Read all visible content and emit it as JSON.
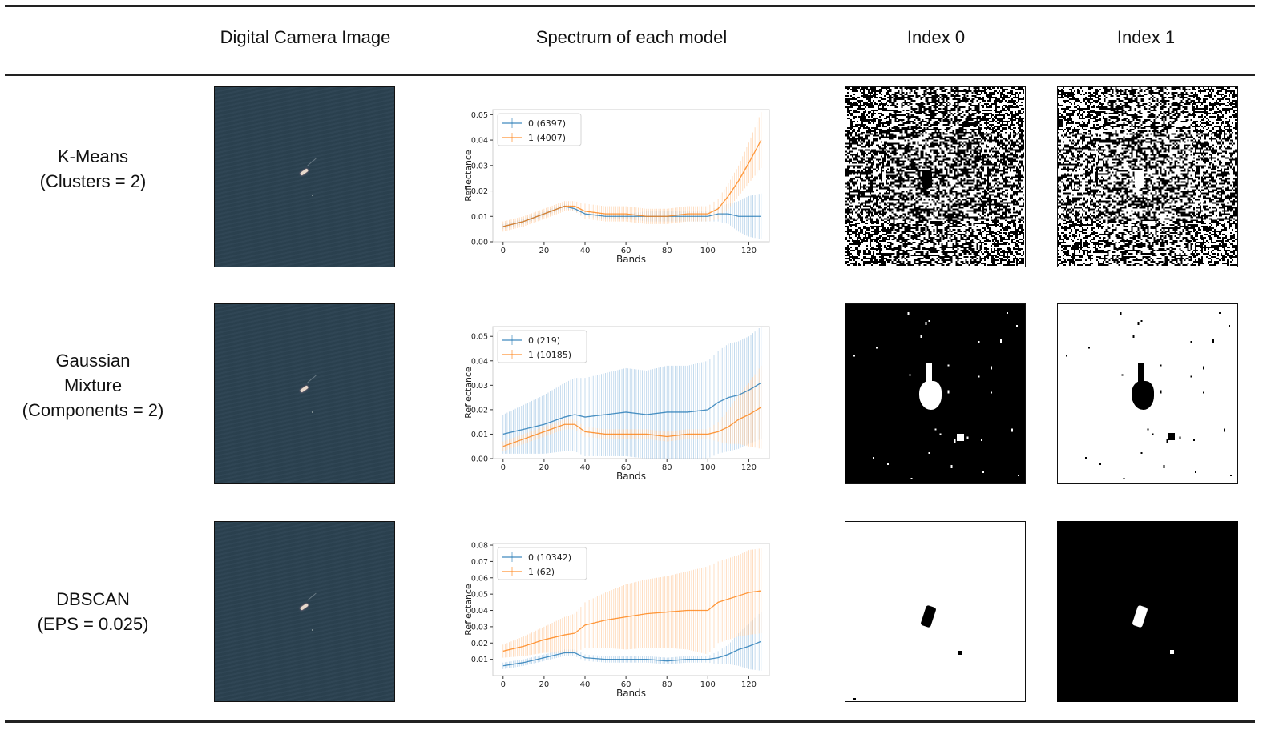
{
  "headers": {
    "image": "Digital Camera Image",
    "spectrum": "Spectrum of each model",
    "index0": "Index 0",
    "index1": "Index 1"
  },
  "rows": [
    {
      "model_line1": "K-Means",
      "model_line2": "(Clusters = 2)",
      "model_line3": ""
    },
    {
      "model_line1": "Gaussian",
      "model_line2": "Mixture",
      "model_line3": "(Components = 2)"
    },
    {
      "model_line1": "DBSCAN",
      "model_line2": "(EPS = 0.025)",
      "model_line3": ""
    }
  ],
  "colors": {
    "series0": "#1f77b4",
    "series1": "#ff7f0e",
    "water": "#2b4251"
  },
  "chart_data": [
    {
      "type": "line",
      "xlabel": "Bands",
      "ylabel": "Reflectance",
      "xlim": [
        -5,
        130
      ],
      "ylim": [
        0,
        0.052
      ],
      "xticks": [
        0,
        20,
        40,
        60,
        80,
        100,
        120
      ],
      "yticks": [
        0.0,
        0.01,
        0.02,
        0.03,
        0.04,
        0.05
      ],
      "ytick_labels": [
        "0.00",
        "0.01",
        "0.02",
        "0.03",
        "0.04",
        "0.05"
      ],
      "legend": "top-left",
      "x": [
        0,
        10,
        20,
        30,
        35,
        40,
        50,
        60,
        70,
        80,
        90,
        100,
        105,
        110,
        115,
        120,
        126
      ],
      "series": [
        {
          "name": "0 (6397)",
          "values": [
            0.006,
            0.008,
            0.011,
            0.014,
            0.013,
            0.011,
            0.01,
            0.01,
            0.01,
            0.01,
            0.01,
            0.01,
            0.011,
            0.011,
            0.01,
            0.01,
            0.01
          ],
          "errors": [
            0.001,
            0.001,
            0.001,
            0.001,
            0.001,
            0.001,
            0.001,
            0.001,
            0.002,
            0.002,
            0.002,
            0.002,
            0.003,
            0.004,
            0.006,
            0.008,
            0.009
          ]
        },
        {
          "name": "1 (4007)",
          "values": [
            0.006,
            0.008,
            0.011,
            0.014,
            0.014,
            0.012,
            0.011,
            0.011,
            0.01,
            0.01,
            0.011,
            0.011,
            0.013,
            0.018,
            0.024,
            0.031,
            0.04
          ],
          "errors": [
            0.002,
            0.002,
            0.002,
            0.002,
            0.002,
            0.003,
            0.003,
            0.003,
            0.003,
            0.003,
            0.003,
            0.003,
            0.004,
            0.005,
            0.006,
            0.008,
            0.011
          ]
        }
      ]
    },
    {
      "type": "line",
      "xlabel": "Bands",
      "ylabel": "Reflectance",
      "xlim": [
        -5,
        130
      ],
      "ylim": [
        0,
        0.054
      ],
      "xticks": [
        0,
        20,
        40,
        60,
        80,
        100,
        120
      ],
      "yticks": [
        0.0,
        0.01,
        0.02,
        0.03,
        0.04,
        0.05
      ],
      "ytick_labels": [
        "0.00",
        "0.01",
        "0.02",
        "0.03",
        "0.04",
        "0.05"
      ],
      "legend": "top-left",
      "x": [
        0,
        10,
        20,
        30,
        35,
        40,
        50,
        60,
        70,
        80,
        90,
        100,
        105,
        110,
        115,
        120,
        126
      ],
      "series": [
        {
          "name": "0 (219)",
          "values": [
            0.01,
            0.012,
            0.014,
            0.017,
            0.018,
            0.017,
            0.018,
            0.019,
            0.018,
            0.019,
            0.019,
            0.02,
            0.023,
            0.025,
            0.026,
            0.028,
            0.031
          ],
          "errors": [
            0.008,
            0.01,
            0.012,
            0.014,
            0.015,
            0.016,
            0.017,
            0.018,
            0.018,
            0.019,
            0.019,
            0.02,
            0.021,
            0.022,
            0.022,
            0.022,
            0.023
          ]
        },
        {
          "name": "1 (10185)",
          "values": [
            0.005,
            0.008,
            0.011,
            0.014,
            0.014,
            0.011,
            0.01,
            0.01,
            0.01,
            0.009,
            0.01,
            0.01,
            0.011,
            0.013,
            0.016,
            0.018,
            0.021
          ],
          "errors": [
            0.002,
            0.002,
            0.002,
            0.002,
            0.002,
            0.002,
            0.002,
            0.002,
            0.002,
            0.002,
            0.002,
            0.002,
            0.004,
            0.007,
            0.01,
            0.013,
            0.017
          ]
        }
      ]
    },
    {
      "type": "line",
      "xlabel": "Bands",
      "ylabel": "Reflectance",
      "xlim": [
        -5,
        130
      ],
      "ylim": [
        0,
        0.081
      ],
      "xticks": [
        0,
        20,
        40,
        60,
        80,
        100,
        120
      ],
      "yticks": [
        0.01,
        0.02,
        0.03,
        0.04,
        0.05,
        0.06,
        0.07,
        0.08
      ],
      "ytick_labels": [
        "0.01",
        "0.02",
        "0.03",
        "0.04",
        "0.05",
        "0.06",
        "0.07",
        "0.08"
      ],
      "legend": "top-left",
      "x": [
        0,
        10,
        20,
        30,
        35,
        40,
        50,
        60,
        70,
        80,
        90,
        100,
        105,
        110,
        115,
        120,
        126
      ],
      "series": [
        {
          "name": "0 (10342)",
          "values": [
            0.006,
            0.008,
            0.011,
            0.014,
            0.014,
            0.011,
            0.01,
            0.01,
            0.01,
            0.009,
            0.01,
            0.01,
            0.011,
            0.013,
            0.016,
            0.018,
            0.021
          ],
          "errors": [
            0.002,
            0.002,
            0.002,
            0.002,
            0.002,
            0.002,
            0.002,
            0.002,
            0.002,
            0.002,
            0.002,
            0.002,
            0.004,
            0.006,
            0.01,
            0.014,
            0.018
          ]
        },
        {
          "name": "1 (62)",
          "values": [
            0.015,
            0.018,
            0.022,
            0.025,
            0.026,
            0.031,
            0.034,
            0.036,
            0.038,
            0.039,
            0.04,
            0.04,
            0.045,
            0.047,
            0.049,
            0.051,
            0.052
          ],
          "errors": [
            0.004,
            0.006,
            0.008,
            0.011,
            0.012,
            0.014,
            0.017,
            0.02,
            0.021,
            0.022,
            0.024,
            0.027,
            0.025,
            0.025,
            0.025,
            0.026,
            0.026
          ]
        }
      ]
    }
  ]
}
